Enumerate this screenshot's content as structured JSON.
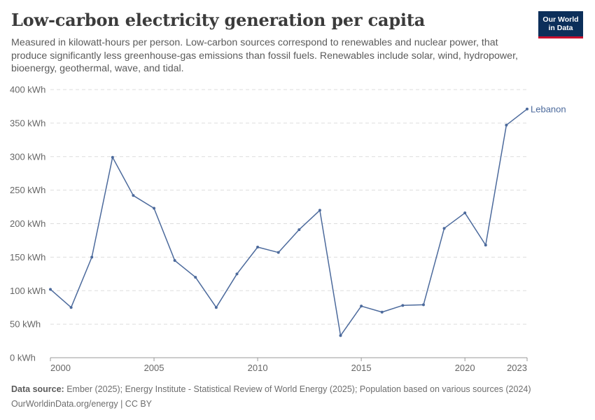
{
  "header": {
    "title": "Low-carbon electricity generation per capita",
    "subtitle": "Measured in kilowatt-hours per person. Low-carbon sources correspond to renewables and nuclear power, that produce significantly less greenhouse-gas emissions than fossil fuels. Renewables include solar, wind, hydropower, bioenergy, geothermal, wave, and tidal."
  },
  "logo": {
    "line1": "Our World",
    "line2": "in Data"
  },
  "footer": {
    "source_label": "Data source:",
    "source_text": "Ember (2025); Energy Institute - Statistical Review of World Energy (2025); Population based on various sources (2024)",
    "url_text": "OurWorldinData.org/energy | CC BY"
  },
  "chart_data": {
    "type": "line",
    "title": "Low-carbon electricity generation per capita",
    "xlabel": "",
    "ylabel": "",
    "xlim": [
      2000,
      2023
    ],
    "ylim": [
      0,
      400
    ],
    "y_ticks": [
      0,
      50,
      100,
      150,
      200,
      250,
      300,
      350,
      400
    ],
    "y_tick_labels": [
      "0 kWh",
      "50 kWh",
      "100 kWh",
      "150 kWh",
      "200 kWh",
      "250 kWh",
      "300 kWh",
      "350 kWh",
      "400 kWh"
    ],
    "x_ticks": [
      2000,
      2005,
      2010,
      2015,
      2020,
      2023
    ],
    "x_tick_labels": [
      "2000",
      "2005",
      "2010",
      "2015",
      "2020",
      "2023"
    ],
    "grid": "horizontal dashed",
    "legend": "inline label at line end",
    "series": [
      {
        "name": "Lebanon",
        "color": "#4c6a9c",
        "x": [
          2000,
          2001,
          2002,
          2003,
          2004,
          2005,
          2006,
          2007,
          2008,
          2009,
          2010,
          2011,
          2012,
          2013,
          2014,
          2015,
          2016,
          2017,
          2018,
          2019,
          2020,
          2021,
          2022,
          2023
        ],
        "y": [
          102,
          75,
          150,
          299,
          242,
          223,
          145,
          120,
          75,
          125,
          165,
          157,
          191,
          220,
          33,
          77,
          68,
          78,
          79,
          193,
          216,
          168,
          347,
          371
        ]
      }
    ]
  }
}
